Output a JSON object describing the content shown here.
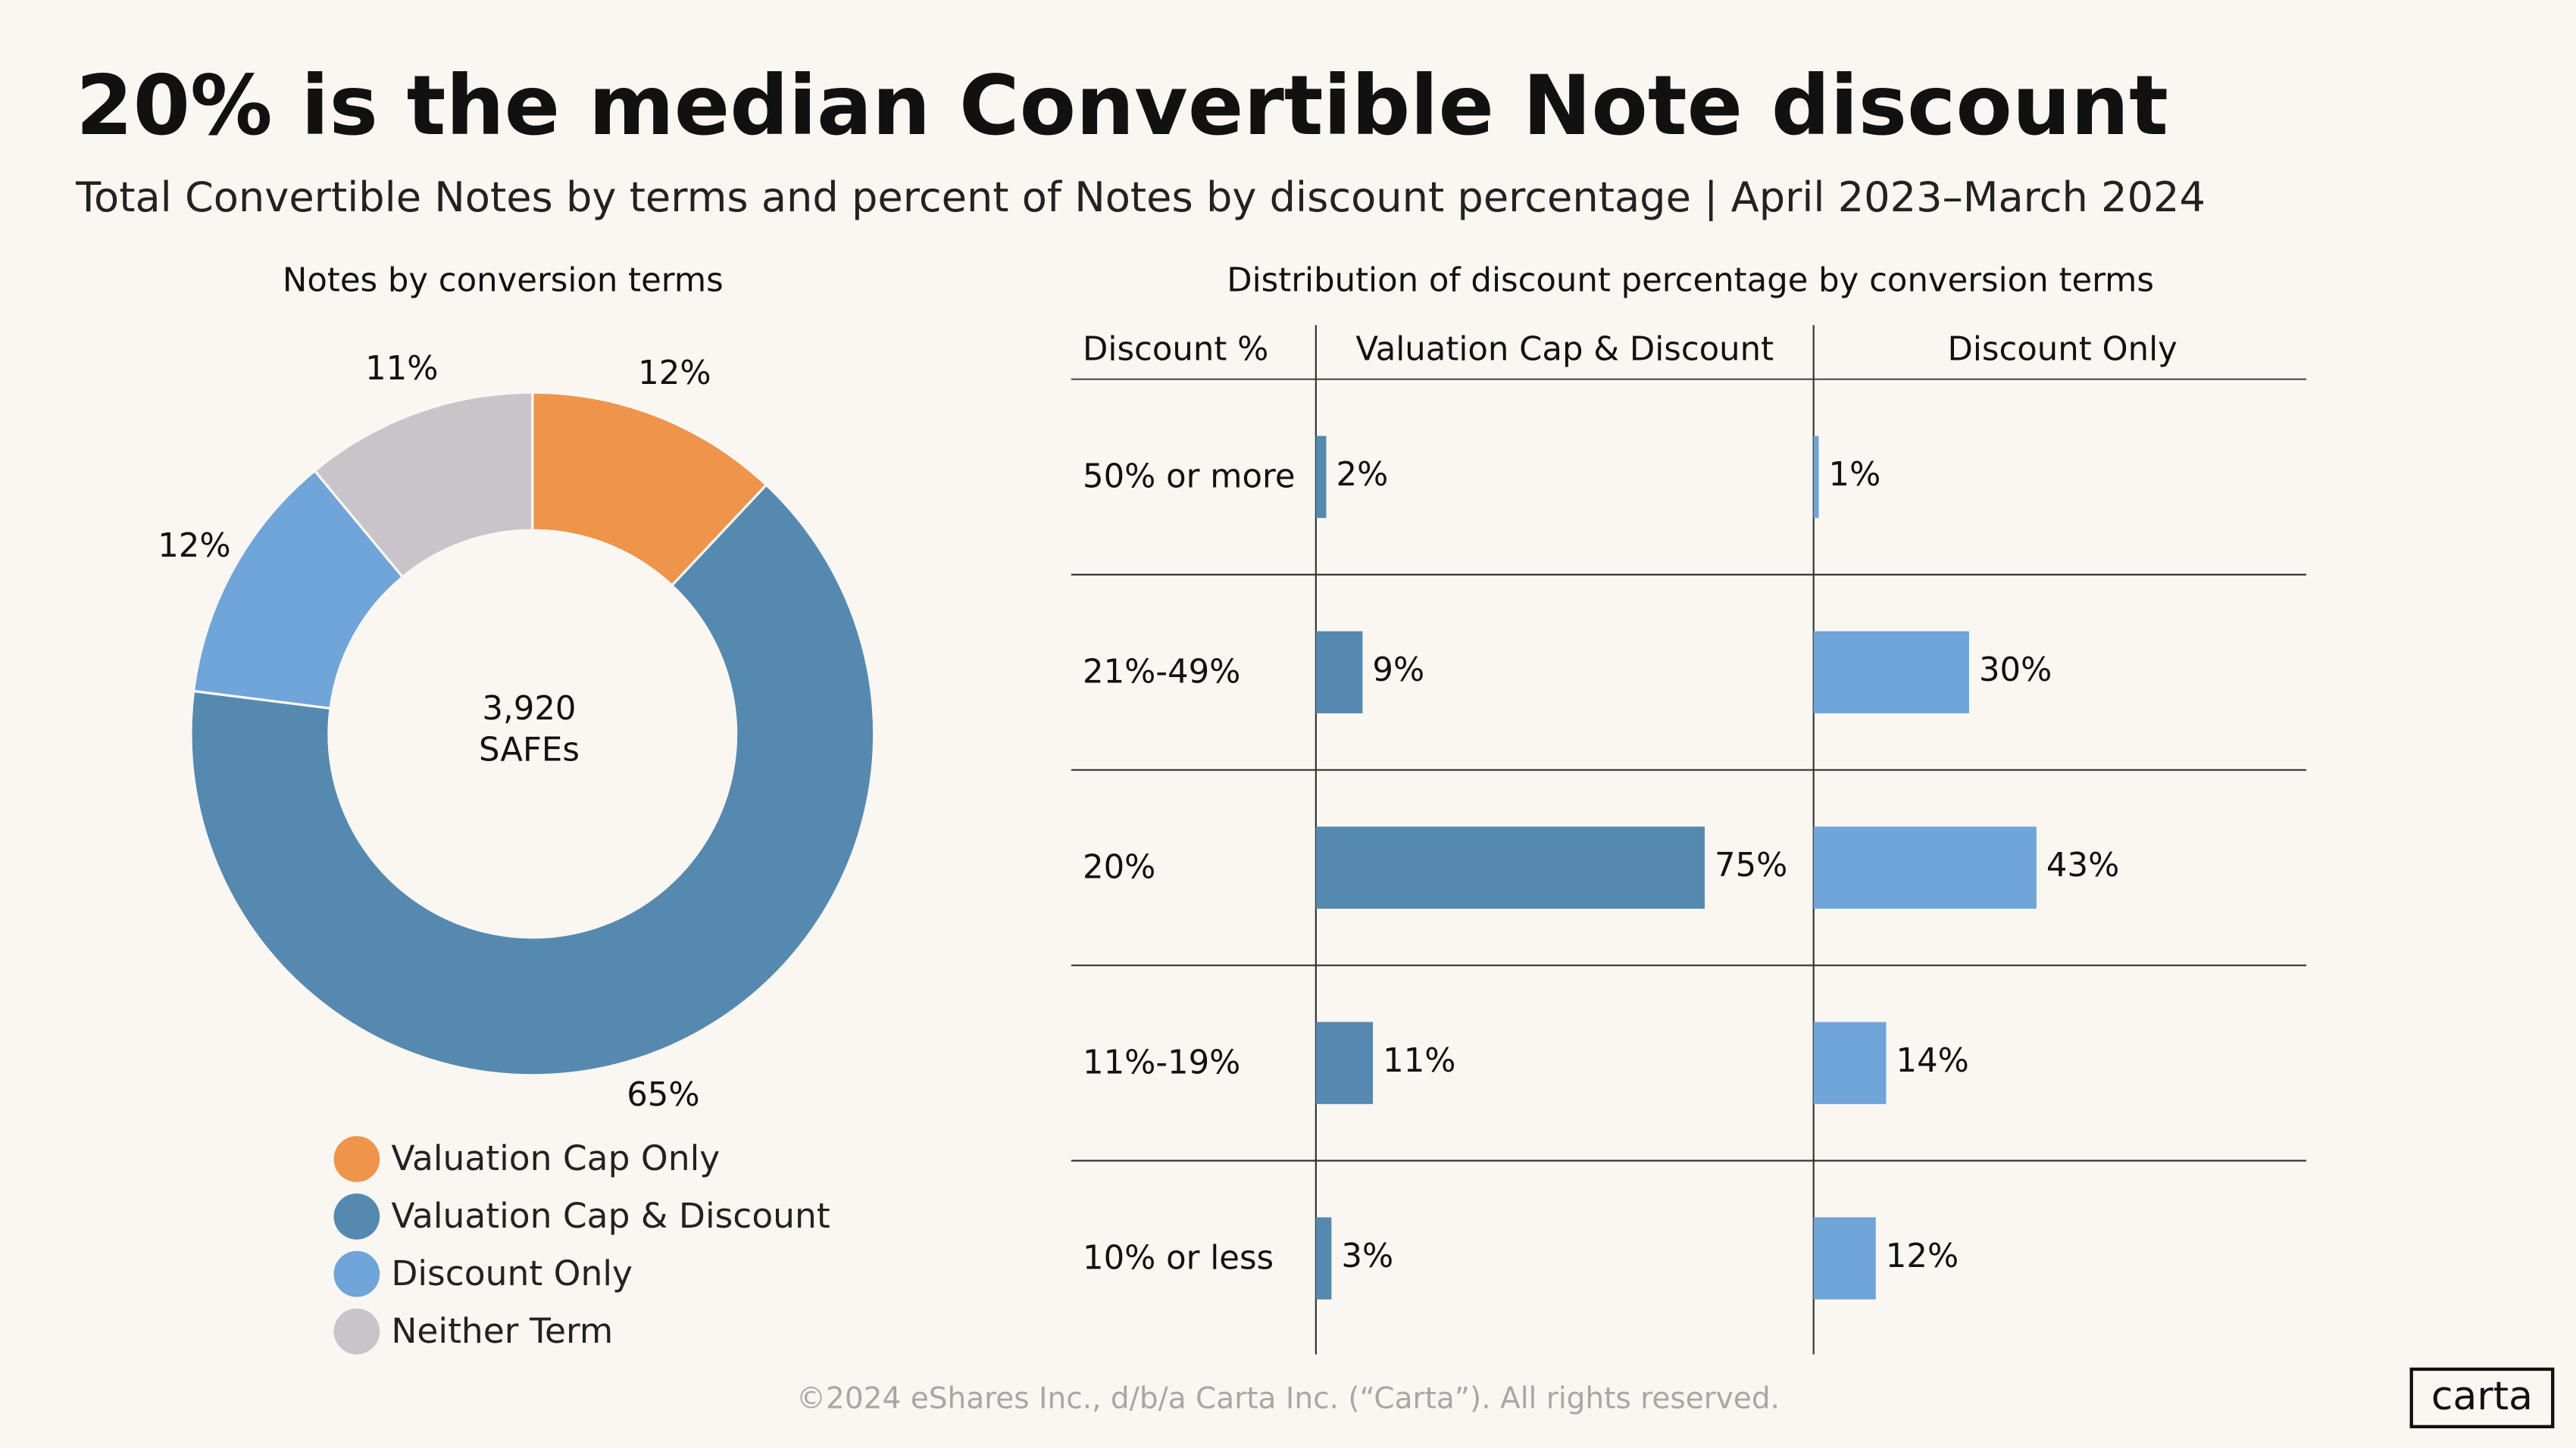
{
  "title": "20% is the median Convertible Note discount",
  "subtitle": "Total Convertible Notes by terms and percent of Notes by discount percentage | April 2023–March 2024",
  "footer": "©2024 eShares Inc., d/b/a Carta Inc. (“Carta”). All rights reserved.",
  "logo": "carta",
  "chart_data": [
    {
      "type": "pie",
      "title": "Notes by conversion terms",
      "center_label": [
        "3,920",
        "SAFEs"
      ],
      "categories": [
        "Valuation Cap Only",
        "Valuation Cap & Discount",
        "Discount Only",
        "Neither Term"
      ],
      "values": [
        12,
        65,
        12,
        11
      ],
      "value_labels": [
        "12%",
        "65%",
        "12%",
        "11%"
      ],
      "colors": [
        "#ee944b",
        "#5589b0",
        "#6fa5d8",
        "#c9c4ca"
      ]
    },
    {
      "type": "bar",
      "title": "Distribution of discount percentage by conversion terms",
      "category_header": "Discount %",
      "categories": [
        "50% or more",
        "21%-49%",
        "20%",
        "11%-19%",
        "10% or less"
      ],
      "xlim": [
        0,
        96
      ],
      "series": [
        {
          "name": "Valuation Cap & Discount",
          "color": "#5589b0",
          "values": [
            2,
            9,
            75,
            11,
            3
          ],
          "value_labels": [
            "2%",
            "9%",
            "75%",
            "11%",
            "3%"
          ]
        },
        {
          "name": "Discount Only",
          "color": "#6fa5d8",
          "values": [
            1,
            30,
            43,
            14,
            12
          ],
          "value_labels": [
            "1%",
            "30%",
            "43%",
            "14%",
            "12%"
          ]
        }
      ]
    }
  ]
}
